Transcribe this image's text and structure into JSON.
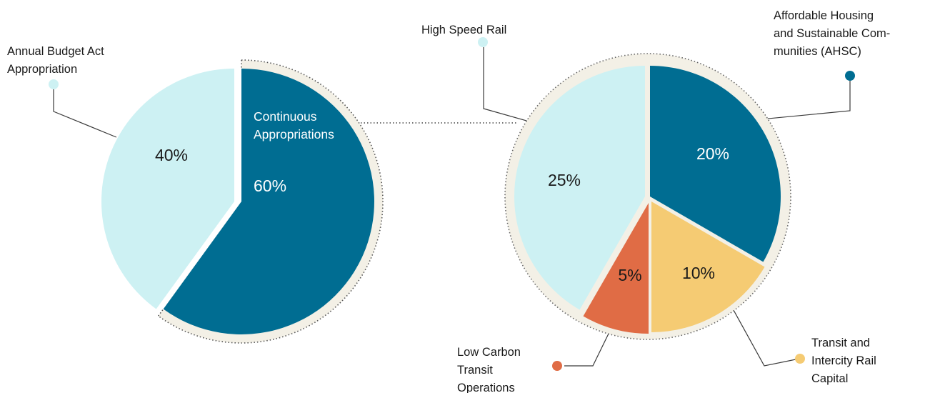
{
  "chart_data": [
    {
      "type": "pie",
      "title": "",
      "slices": [
        {
          "name": "Annual Budget Act Appropriation",
          "label_lines": [
            "Annual Budget Act",
            "Appropriation"
          ],
          "value": 40,
          "value_label": "40%",
          "color": "#cdf1f3"
        },
        {
          "name": "Continuous Appropriations",
          "label_lines": [
            "Continuous",
            "Appropriations"
          ],
          "value": 60,
          "value_label": "60%",
          "color": "#006d92"
        }
      ]
    },
    {
      "type": "pie",
      "title": "",
      "slices": [
        {
          "name": "Affordable Housing and Sustainable Communities (AHSC)",
          "label_lines": [
            "Affordable Housing",
            "and Sustainable Com-",
            "munities (AHSC)"
          ],
          "value": 20,
          "value_label": "20%",
          "color": "#006d92"
        },
        {
          "name": "Transit and Intercity Rail Capital",
          "label_lines": [
            "Transit and",
            "Intercity Rail",
            "Capital"
          ],
          "value": 10,
          "value_label": "10%",
          "color": "#f5cb73"
        },
        {
          "name": "Low Carbon Transit Operations",
          "label_lines": [
            "Low Carbon",
            "Transit",
            "Operations"
          ],
          "value": 5,
          "value_label": "5%",
          "color": "#e06c45"
        },
        {
          "name": "High Speed Rail",
          "label_lines": [
            "High Speed Rail"
          ],
          "value": 25,
          "value_label": "25%",
          "color": "#cdf1f3"
        }
      ]
    }
  ],
  "colors": {
    "ring": "#f3f0e6",
    "leader": "#3a3a3a"
  }
}
